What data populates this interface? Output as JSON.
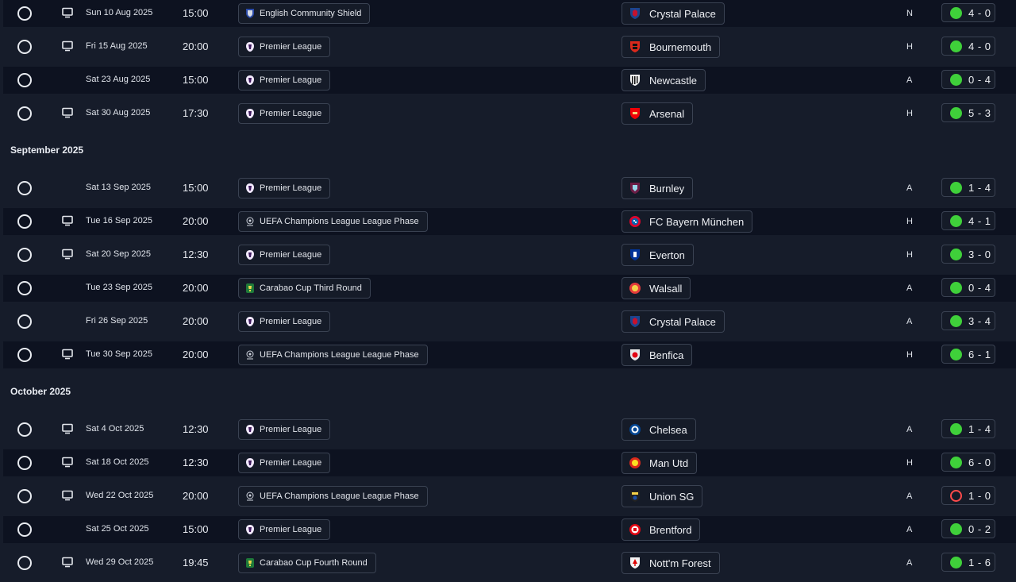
{
  "colors": {
    "background": "#161c2a",
    "row_dark": "#0d1220",
    "win": "#3fd03a",
    "loss": "#ff4b4b",
    "border": "#3a4252"
  },
  "sections": [
    {
      "month": "",
      "matches": [
        {
          "tv": true,
          "date": "Sun 10 Aug 2025",
          "time": "15:00",
          "competition": "English Community Shield",
          "comp_icon": "community-shield",
          "opponent": "Crystal Palace",
          "crest": "crystal-palace",
          "venue": "N",
          "outcome": "win",
          "score": "4 - 0"
        },
        {
          "tv": true,
          "date": "Fri 15 Aug 2025",
          "time": "20:00",
          "competition": "Premier League",
          "comp_icon": "premier-league",
          "opponent": "Bournemouth",
          "crest": "bournemouth",
          "venue": "H",
          "outcome": "win",
          "score": "4 - 0"
        },
        {
          "tv": false,
          "date": "Sat 23 Aug 2025",
          "time": "15:00",
          "competition": "Premier League",
          "comp_icon": "premier-league",
          "opponent": "Newcastle",
          "crest": "newcastle",
          "venue": "A",
          "outcome": "win",
          "score": "0 - 4"
        },
        {
          "tv": true,
          "date": "Sat 30 Aug 2025",
          "time": "17:30",
          "competition": "Premier League",
          "comp_icon": "premier-league",
          "opponent": "Arsenal",
          "crest": "arsenal",
          "venue": "H",
          "outcome": "win",
          "score": "5 - 3"
        }
      ]
    },
    {
      "month": "September 2025",
      "matches": [
        {
          "tv": false,
          "date": "Sat 13 Sep 2025",
          "time": "15:00",
          "competition": "Premier League",
          "comp_icon": "premier-league",
          "opponent": "Burnley",
          "crest": "burnley",
          "venue": "A",
          "outcome": "win",
          "score": "1 - 4"
        },
        {
          "tv": true,
          "date": "Tue 16 Sep 2025",
          "time": "20:00",
          "competition": "UEFA Champions League League Phase",
          "comp_icon": "champions-league",
          "opponent": "FC Bayern München",
          "crest": "bayern",
          "venue": "H",
          "outcome": "win",
          "score": "4 - 1"
        },
        {
          "tv": true,
          "date": "Sat 20 Sep 2025",
          "time": "12:30",
          "competition": "Premier League",
          "comp_icon": "premier-league",
          "opponent": "Everton",
          "crest": "everton",
          "venue": "H",
          "outcome": "win",
          "score": "3 - 0"
        },
        {
          "tv": false,
          "date": "Tue 23 Sep 2025",
          "time": "20:00",
          "competition": "Carabao Cup Third Round",
          "comp_icon": "carabao-cup",
          "opponent": "Walsall",
          "crest": "walsall",
          "venue": "A",
          "outcome": "win",
          "score": "0 - 4"
        },
        {
          "tv": false,
          "date": "Fri 26 Sep 2025",
          "time": "20:00",
          "competition": "Premier League",
          "comp_icon": "premier-league",
          "opponent": "Crystal Palace",
          "crest": "crystal-palace",
          "venue": "A",
          "outcome": "win",
          "score": "3 - 4"
        },
        {
          "tv": true,
          "date": "Tue 30 Sep 2025",
          "time": "20:00",
          "competition": "UEFA Champions League League Phase",
          "comp_icon": "champions-league",
          "opponent": "Benfica",
          "crest": "benfica",
          "venue": "H",
          "outcome": "win",
          "score": "6 - 1"
        }
      ]
    },
    {
      "month": "October 2025",
      "matches": [
        {
          "tv": true,
          "date": "Sat 4 Oct 2025",
          "time": "12:30",
          "competition": "Premier League",
          "comp_icon": "premier-league",
          "opponent": "Chelsea",
          "crest": "chelsea",
          "venue": "A",
          "outcome": "win",
          "score": "1 - 4"
        },
        {
          "tv": true,
          "date": "Sat 18 Oct 2025",
          "time": "12:30",
          "competition": "Premier League",
          "comp_icon": "premier-league",
          "opponent": "Man Utd",
          "crest": "man-utd",
          "venue": "H",
          "outcome": "win",
          "score": "6 - 0"
        },
        {
          "tv": true,
          "date": "Wed 22 Oct 2025",
          "time": "20:00",
          "competition": "UEFA Champions League League Phase",
          "comp_icon": "champions-league",
          "opponent": "Union SG",
          "crest": "union-sg",
          "venue": "A",
          "outcome": "loss",
          "score": "1 - 0"
        },
        {
          "tv": false,
          "date": "Sat 25 Oct 2025",
          "time": "15:00",
          "competition": "Premier League",
          "comp_icon": "premier-league",
          "opponent": "Brentford",
          "crest": "brentford",
          "venue": "A",
          "outcome": "win",
          "score": "0 - 2"
        },
        {
          "tv": true,
          "date": "Wed 29 Oct 2025",
          "time": "19:45",
          "competition": "Carabao Cup Fourth Round",
          "comp_icon": "carabao-cup",
          "opponent": "Nott'm Forest",
          "crest": "nottm-forest",
          "venue": "A",
          "outcome": "win",
          "score": "1 - 6"
        }
      ]
    }
  ]
}
